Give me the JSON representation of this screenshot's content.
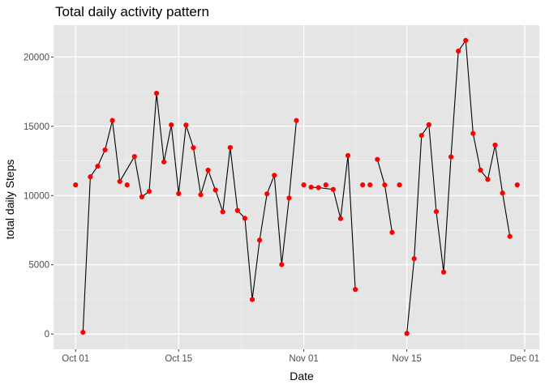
{
  "chart_data": {
    "type": "line",
    "title": "Total daily activity pattern",
    "xlabel": "Date",
    "ylabel": "total daily Steps",
    "x_ticks": [
      "Oct 01",
      "Oct 15",
      "Nov 01",
      "Nov 15",
      "Dec 01"
    ],
    "y_ticks": [
      "0",
      "5000",
      "10000",
      "15000",
      "20000"
    ],
    "xlim": [
      "2012-09-28",
      "2012-12-03"
    ],
    "ylim": [
      -1100,
      22300
    ],
    "grid": true,
    "line_color": "#000000",
    "point_color": "#ff0000",
    "panel_color": "#e5e5e5",
    "series": [
      {
        "line": [
          [
            "2012-10-02",
            126
          ],
          [
            "2012-10-03",
            11352
          ],
          [
            "2012-10-04",
            12116
          ],
          [
            "2012-10-05",
            13294
          ],
          [
            "2012-10-06",
            15420
          ],
          [
            "2012-10-07",
            11015
          ],
          [
            "2012-10-09",
            12811
          ],
          [
            "2012-10-10",
            9900
          ],
          [
            "2012-10-11",
            10304
          ],
          [
            "2012-10-12",
            17382
          ],
          [
            "2012-10-13",
            12426
          ],
          [
            "2012-10-14",
            15098
          ],
          [
            "2012-10-15",
            10139
          ],
          [
            "2012-10-16",
            15084
          ],
          [
            "2012-10-17",
            13452
          ],
          [
            "2012-10-18",
            10056
          ],
          [
            "2012-10-19",
            11829
          ],
          [
            "2012-10-20",
            10395
          ],
          [
            "2012-10-21",
            8821
          ],
          [
            "2012-10-22",
            13460
          ],
          [
            "2012-10-23",
            8918
          ],
          [
            "2012-10-24",
            8355
          ],
          [
            "2012-10-25",
            2492
          ],
          [
            "2012-10-26",
            6778
          ],
          [
            "2012-10-27",
            10119
          ],
          [
            "2012-10-28",
            11458
          ],
          [
            "2012-10-29",
            5018
          ],
          [
            "2012-10-30",
            9819
          ],
          [
            "2012-10-31",
            15414
          ]
        ]
      },
      {
        "line": [
          [
            "2012-11-02",
            10600
          ],
          [
            "2012-11-03",
            10571
          ],
          [
            "2012-11-05",
            10439
          ],
          [
            "2012-11-06",
            8334
          ],
          [
            "2012-11-07",
            12883
          ],
          [
            "2012-11-08",
            3219
          ]
        ]
      },
      {
        "line": [
          [
            "2012-11-11",
            12608
          ],
          [
            "2012-11-12",
            10765
          ],
          [
            "2012-11-13",
            7336
          ]
        ]
      },
      {
        "line": [
          [
            "2012-11-15",
            41
          ],
          [
            "2012-11-16",
            5441
          ],
          [
            "2012-11-17",
            14339
          ],
          [
            "2012-11-18",
            15110
          ],
          [
            "2012-11-19",
            8841
          ],
          [
            "2012-11-20",
            4472
          ],
          [
            "2012-11-21",
            12787
          ],
          [
            "2012-11-22",
            20427
          ],
          [
            "2012-11-23",
            21194
          ],
          [
            "2012-11-24",
            14478
          ],
          [
            "2012-11-25",
            11834
          ],
          [
            "2012-11-26",
            11162
          ],
          [
            "2012-11-27",
            13646
          ],
          [
            "2012-11-28",
            10183
          ],
          [
            "2012-11-29",
            7047
          ]
        ]
      }
    ],
    "points": [
      [
        "2012-10-01",
        10766
      ],
      [
        "2012-10-02",
        126
      ],
      [
        "2012-10-03",
        11352
      ],
      [
        "2012-10-04",
        12116
      ],
      [
        "2012-10-05",
        13294
      ],
      [
        "2012-10-06",
        15420
      ],
      [
        "2012-10-07",
        11015
      ],
      [
        "2012-10-08",
        10766
      ],
      [
        "2012-10-09",
        12811
      ],
      [
        "2012-10-10",
        9900
      ],
      [
        "2012-10-11",
        10304
      ],
      [
        "2012-10-12",
        17382
      ],
      [
        "2012-10-13",
        12426
      ],
      [
        "2012-10-14",
        15098
      ],
      [
        "2012-10-15",
        10139
      ],
      [
        "2012-10-16",
        15084
      ],
      [
        "2012-10-17",
        13452
      ],
      [
        "2012-10-18",
        10056
      ],
      [
        "2012-10-19",
        11829
      ],
      [
        "2012-10-20",
        10395
      ],
      [
        "2012-10-21",
        8821
      ],
      [
        "2012-10-22",
        13460
      ],
      [
        "2012-10-23",
        8918
      ],
      [
        "2012-10-24",
        8355
      ],
      [
        "2012-10-25",
        2492
      ],
      [
        "2012-10-26",
        6778
      ],
      [
        "2012-10-27",
        10119
      ],
      [
        "2012-10-28",
        11458
      ],
      [
        "2012-10-29",
        5018
      ],
      [
        "2012-10-30",
        9819
      ],
      [
        "2012-10-31",
        15414
      ],
      [
        "2012-11-01",
        10766
      ],
      [
        "2012-11-02",
        10600
      ],
      [
        "2012-11-03",
        10571
      ],
      [
        "2012-11-04",
        10766
      ],
      [
        "2012-11-05",
        10439
      ],
      [
        "2012-11-06",
        8334
      ],
      [
        "2012-11-07",
        12883
      ],
      [
        "2012-11-08",
        3219
      ],
      [
        "2012-11-09",
        10766
      ],
      [
        "2012-11-10",
        10766
      ],
      [
        "2012-11-11",
        12608
      ],
      [
        "2012-11-12",
        10765
      ],
      [
        "2012-11-13",
        7336
      ],
      [
        "2012-11-14",
        10766
      ],
      [
        "2012-11-15",
        41
      ],
      [
        "2012-11-16",
        5441
      ],
      [
        "2012-11-17",
        14339
      ],
      [
        "2012-11-18",
        15110
      ],
      [
        "2012-11-19",
        8841
      ],
      [
        "2012-11-20",
        4472
      ],
      [
        "2012-11-21",
        12787
      ],
      [
        "2012-11-22",
        20427
      ],
      [
        "2012-11-23",
        21194
      ],
      [
        "2012-11-24",
        14478
      ],
      [
        "2012-11-25",
        11834
      ],
      [
        "2012-11-26",
        11162
      ],
      [
        "2012-11-27",
        13646
      ],
      [
        "2012-11-28",
        10183
      ],
      [
        "2012-11-29",
        7047
      ],
      [
        "2012-11-30",
        10766
      ]
    ]
  }
}
